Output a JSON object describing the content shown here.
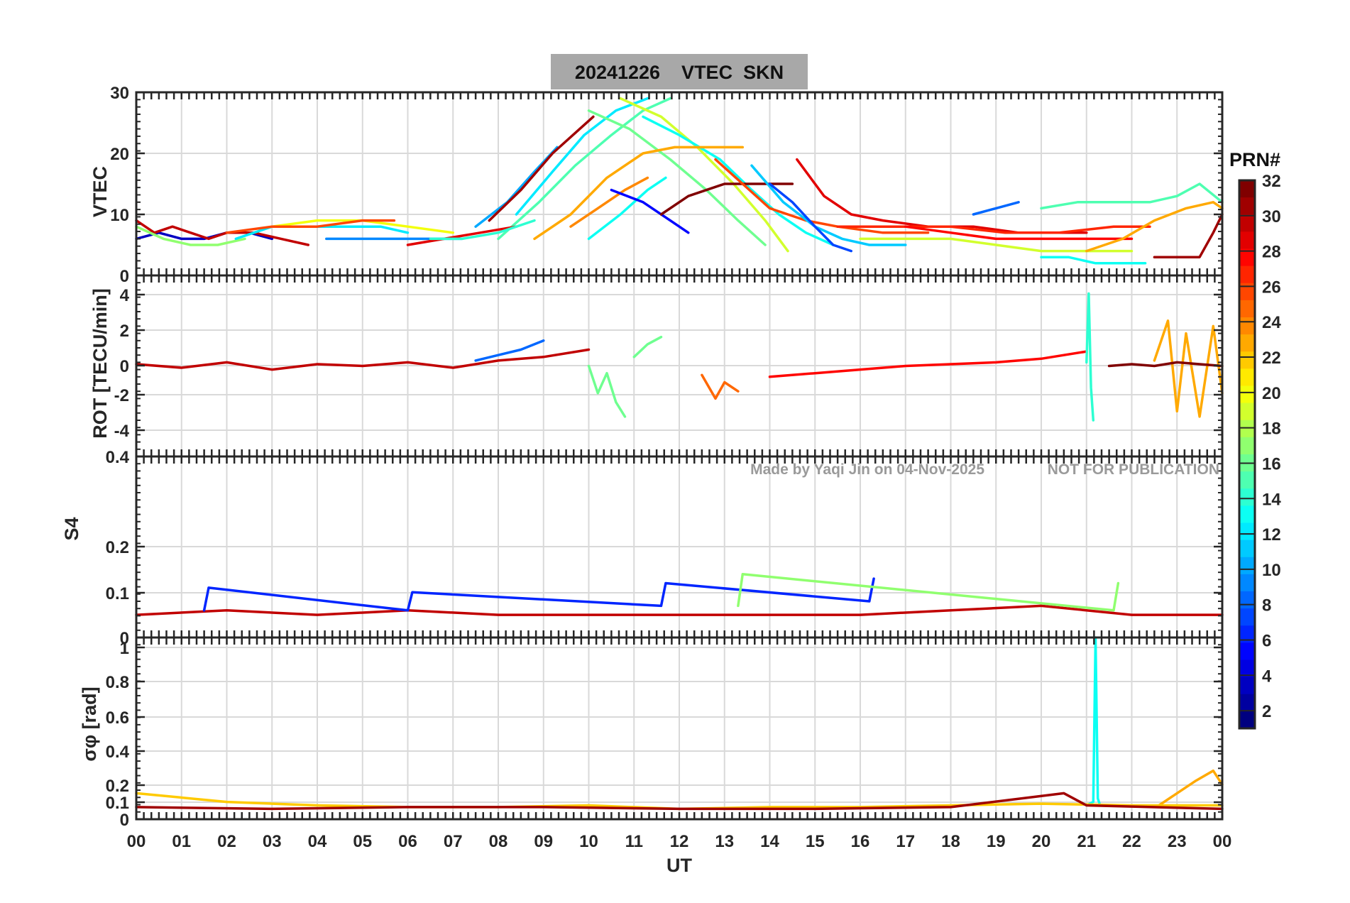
{
  "chart_data": {
    "type": "line",
    "title": "20241226    VTEC  SKN",
    "watermark": [
      "Made by Yaqi Jin on 04-Nov-2025",
      "NOT FOR PUBLICATION"
    ],
    "xlabel": "UT",
    "xlim": [
      0,
      24
    ],
    "xticks": [
      "00",
      "01",
      "02",
      "03",
      "04",
      "05",
      "06",
      "07",
      "08",
      "09",
      "10",
      "11",
      "12",
      "13",
      "14",
      "15",
      "16",
      "17",
      "18",
      "19",
      "20",
      "21",
      "22",
      "23",
      "00"
    ],
    "colorbar": {
      "title": "PRN#",
      "range": [
        1,
        32
      ],
      "ticks": [
        "2",
        "4",
        "6",
        "8",
        "10",
        "12",
        "14",
        "16",
        "18",
        "20",
        "22",
        "24",
        "26",
        "28",
        "30",
        "32"
      ]
    },
    "panels": [
      {
        "id": "vtec",
        "ylabel": "VTEC",
        "ylim": [
          0,
          30
        ],
        "yticks": [
          "0",
          "10",
          "20",
          "30"
        ],
        "series": [
          {
            "prn": 10,
            "x": [
              7.5,
              8.2,
              8.8,
              9.3
            ],
            "y": [
              8,
              12,
              17,
              21
            ]
          },
          {
            "prn": 31,
            "x": [
              7.8,
              8.5,
              9.2,
              9.8,
              10.1
            ],
            "y": [
              9,
              14,
              20,
              24,
              26
            ]
          },
          {
            "prn": 12,
            "x": [
              8.4,
              9.2,
              9.9,
              10.6,
              11.3
            ],
            "y": [
              10,
              17,
              23,
              27,
              29
            ]
          },
          {
            "prn": 15,
            "x": [
              8.0,
              8.9,
              9.7,
              10.5,
              11.2,
              11.8
            ],
            "y": [
              6,
              12,
              18,
              23,
              27,
              29
            ]
          },
          {
            "prn": 16,
            "x": [
              10.0,
              10.9,
              11.8,
              12.6,
              13.3,
              13.9
            ],
            "y": [
              27,
              24,
              19,
              14,
              9,
              5
            ]
          },
          {
            "prn": 19,
            "x": [
              10.7,
              11.6,
              12.4,
              13.2,
              13.9,
              14.4
            ],
            "y": [
              29,
              26,
              21,
              15,
              9,
              4
            ]
          },
          {
            "prn": 13,
            "x": [
              11.2,
              12.0,
              12.9,
              13.6,
              14.2,
              14.8,
              15.4
            ],
            "y": [
              26,
              23,
              19,
              14,
              10,
              7,
              5
            ]
          },
          {
            "prn": 23,
            "x": [
              8.8,
              9.6,
              10.4,
              11.2,
              11.9,
              12.5,
              13.4
            ],
            "y": [
              6,
              10,
              16,
              20,
              21,
              21,
              21
            ]
          },
          {
            "prn": 24,
            "x": [
              9.6,
              10.2,
              10.8,
              11.3
            ],
            "y": [
              8,
              11,
              14,
              16
            ]
          },
          {
            "prn": 13,
            "x": [
              10.0,
              10.7,
              11.3,
              11.7
            ],
            "y": [
              6,
              10,
              14,
              16
            ]
          },
          {
            "prn": 5,
            "x": [
              10.5,
              11.2,
              11.8,
              12.2
            ],
            "y": [
              14,
              12,
              9,
              7
            ]
          },
          {
            "prn": 32,
            "x": [
              11.6,
              12.2,
              13.0,
              13.6,
              14.2,
              14.5
            ],
            "y": [
              10,
              13,
              15,
              15,
              15,
              15
            ]
          },
          {
            "prn": 26,
            "x": [
              12.8,
              13.4,
              14.0,
              14.8,
              15.5,
              16.5,
              17.5
            ],
            "y": [
              19,
              15,
              11,
              9,
              8,
              7,
              7
            ]
          },
          {
            "prn": 29,
            "x": [
              14.6,
              15.2,
              15.8,
              16.5,
              17.5,
              18.5,
              19.5,
              20.5,
              21.0
            ],
            "y": [
              19,
              13,
              10,
              9,
              8,
              8,
              7,
              7,
              7
            ]
          },
          {
            "prn": 11,
            "x": [
              13.6,
              14.3,
              15.0,
              15.6,
              16.2,
              17.0
            ],
            "y": [
              18,
              12,
              8,
              6,
              5,
              5
            ]
          },
          {
            "prn": 7,
            "x": [
              14.0,
              14.5,
              15.0,
              15.4,
              15.8
            ],
            "y": [
              15,
              12,
              8,
              5,
              4
            ]
          },
          {
            "prn": 27,
            "x": [
              15.5,
              16.8,
              18.0,
              19.2,
              20.4,
              21.6,
              22.4
            ],
            "y": [
              8,
              8,
              8,
              7,
              7,
              8,
              8
            ]
          },
          {
            "prn": 28,
            "x": [
              17.0,
              18.0,
              19.0,
              20.0,
              21.0,
              22.0
            ],
            "y": [
              8,
              7,
              6,
              6,
              6,
              6
            ]
          },
          {
            "prn": 19,
            "x": [
              16.0,
              17.0,
              18.0,
              19.0,
              20.0,
              21.0,
              22.0
            ],
            "y": [
              6,
              6,
              6,
              5,
              4,
              4,
              4
            ]
          },
          {
            "prn": 13,
            "x": [
              20.0,
              20.6,
              21.2,
              21.8,
              22.3
            ],
            "y": [
              3,
              3,
              2,
              2,
              2
            ]
          },
          {
            "prn": 15,
            "x": [
              20.0,
              20.8,
              21.6,
              22.4,
              23.0,
              23.5,
              24.0
            ],
            "y": [
              11,
              12,
              12,
              12,
              13,
              15,
              12
            ]
          },
          {
            "prn": 23,
            "x": [
              21.0,
              21.8,
              22.5,
              23.2,
              23.8,
              24.0
            ],
            "y": [
              4,
              6,
              9,
              11,
              12,
              11
            ]
          },
          {
            "prn": 31,
            "x": [
              22.5,
              23.0,
              23.5,
              23.8,
              24.0
            ],
            "y": [
              3,
              3,
              3,
              7,
              10
            ]
          },
          {
            "prn": 8,
            "x": [
              18.5,
              19.0,
              19.5
            ],
            "y": [
              10,
              11,
              12
            ]
          },
          {
            "prn": 3,
            "x": [
              0.0,
              0.5,
              1.0,
              1.5,
              2.0,
              2.5,
              3.0
            ],
            "y": [
              6,
              7,
              6,
              6,
              7,
              7,
              6
            ]
          },
          {
            "prn": 30,
            "x": [
              0.0,
              0.4,
              0.8,
              1.2,
              1.6,
              2.0,
              2.6,
              3.2,
              3.8
            ],
            "y": [
              9,
              7,
              8,
              7,
              6,
              7,
              7,
              6,
              5
            ]
          },
          {
            "prn": 17,
            "x": [
              0.0,
              0.6,
              1.2,
              1.8,
              2.4
            ],
            "y": [
              8,
              6,
              5,
              5,
              6
            ]
          },
          {
            "prn": 12,
            "x": [
              2.2,
              3.0,
              3.8,
              4.6,
              5.4,
              6.0
            ],
            "y": [
              6,
              8,
              8,
              8,
              8,
              7
            ]
          },
          {
            "prn": 20,
            "x": [
              3.0,
              4.0,
              5.0,
              6.0,
              7.0
            ],
            "y": [
              8,
              9,
              9,
              8,
              7
            ]
          },
          {
            "prn": 26,
            "x": [
              2.0,
              3.0,
              4.0,
              5.0,
              5.7
            ],
            "y": [
              7,
              8,
              8,
              9,
              9
            ]
          },
          {
            "prn": 9,
            "x": [
              4.2,
              5.0,
              5.8,
              6.5,
              7.2
            ],
            "y": [
              6,
              6,
              6,
              6,
              6
            ]
          },
          {
            "prn": 29,
            "x": [
              6.0,
              6.8,
              7.6,
              8.4
            ],
            "y": [
              5,
              6,
              7,
              8
            ]
          },
          {
            "prn": 14,
            "x": [
              6.5,
              7.2,
              8.0,
              8.8
            ],
            "y": [
              6,
              6,
              7,
              9
            ]
          }
        ]
      },
      {
        "id": "rot",
        "ylabel": "ROT [TECU/min]",
        "ylim": [
          -5,
          5
        ],
        "yticks": [
          "-4",
          "-2",
          "0",
          "2",
          "4"
        ],
        "series": [
          {
            "prn": 30,
            "x": [
              0,
              1,
              2,
              3,
              4,
              5,
              6,
              7,
              8,
              9,
              10
            ],
            "y": [
              0.1,
              -0.1,
              0.2,
              -0.2,
              0.1,
              0.0,
              0.2,
              -0.1,
              0.3,
              0.5,
              0.9
            ]
          },
          {
            "prn": 8,
            "x": [
              7.5,
              8.0,
              8.5,
              9.0
            ],
            "y": [
              0.3,
              0.6,
              0.9,
              1.4
            ]
          },
          {
            "prn": 16,
            "x": [
              10.0,
              10.2,
              10.4,
              10.6,
              10.8
            ],
            "y": [
              0.0,
              -1.5,
              -0.4,
              -2.0,
              -2.8
            ]
          },
          {
            "prn": 16,
            "x": [
              11.0,
              11.3,
              11.6
            ],
            "y": [
              0.5,
              1.2,
              1.6
            ]
          },
          {
            "prn": 25,
            "x": [
              12.5,
              12.8,
              13.0,
              13.3
            ],
            "y": [
              -0.5,
              -1.8,
              -0.9,
              -1.4
            ]
          },
          {
            "prn": 28,
            "x": [
              14.0,
              15.0,
              16.0,
              17.0,
              18.0,
              19.0,
              20.0,
              21.0
            ],
            "y": [
              -0.6,
              -0.4,
              -0.2,
              0.0,
              0.1,
              0.2,
              0.4,
              0.8
            ]
          },
          {
            "prn": 14,
            "x": [
              21.0,
              21.05,
              21.1,
              21.15
            ],
            "y": [
              0.2,
              4.0,
              -1.2,
              -3.0
            ]
          },
          {
            "prn": 23,
            "x": [
              22.5,
              22.8,
              23.0,
              23.2,
              23.5,
              23.8,
              24.0
            ],
            "y": [
              0.3,
              2.5,
              -2.5,
              1.8,
              -2.8,
              2.2,
              -1.5
            ]
          },
          {
            "prn": 32,
            "x": [
              21.5,
              22.0,
              22.5,
              23.0,
              23.5,
              24.0
            ],
            "y": [
              0.0,
              0.1,
              0.0,
              0.2,
              0.1,
              0.0
            ]
          }
        ]
      },
      {
        "id": "s4",
        "ylabel": "S4",
        "ylim": [
          0,
          0.4
        ],
        "yticks": [
          "0",
          "0.1",
          "0.2",
          "0.4"
        ],
        "series": [
          {
            "prn": 30,
            "x": [
              0,
              2,
              4,
              6,
              8,
              10,
              12,
              14,
              16,
              18,
              20,
              22,
              24
            ],
            "y": [
              0.05,
              0.06,
              0.05,
              0.06,
              0.05,
              0.05,
              0.05,
              0.05,
              0.05,
              0.06,
              0.07,
              0.05,
              0.05
            ]
          },
          {
            "prn": 6,
            "x": [
              1.5,
              1.6,
              6.0,
              6.1,
              11.6,
              11.7,
              16.2,
              16.3
            ],
            "y": [
              0.06,
              0.11,
              0.06,
              0.1,
              0.07,
              0.12,
              0.08,
              0.13
            ]
          },
          {
            "prn": 17,
            "x": [
              13.3,
              13.4,
              21.6,
              21.7
            ],
            "y": [
              0.07,
              0.14,
              0.06,
              0.12
            ]
          }
        ]
      },
      {
        "id": "sigma_phi",
        "ylabel": "σφ [rad]",
        "ylim": [
          0,
          1.05
        ],
        "yticks": [
          "0",
          "0.1",
          "0.2",
          "0.4",
          "0.6",
          "0.8",
          "1"
        ],
        "series": [
          {
            "prn": 13,
            "x": [
              21.0,
              21.15,
              21.2,
              21.25,
              21.3
            ],
            "y": [
              0.08,
              0.1,
              1.05,
              0.12,
              0.08
            ]
          },
          {
            "prn": 23,
            "x": [
              22.6,
              23.0,
              23.4,
              23.8,
              24.0
            ],
            "y": [
              0.08,
              0.15,
              0.22,
              0.28,
              0.2
            ]
          },
          {
            "prn": 22,
            "x": [
              0,
              2,
              4,
              6,
              8,
              10,
              12,
              14,
              16,
              18,
              20,
              22,
              24
            ],
            "y": [
              0.15,
              0.1,
              0.08,
              0.07,
              0.07,
              0.08,
              0.06,
              0.07,
              0.07,
              0.08,
              0.09,
              0.08,
              0.08
            ]
          },
          {
            "prn": 31,
            "x": [
              0,
              3,
              6,
              9,
              12,
              15,
              18,
              20.5,
              21,
              24
            ],
            "y": [
              0.07,
              0.06,
              0.07,
              0.07,
              0.06,
              0.06,
              0.07,
              0.15,
              0.08,
              0.06
            ]
          }
        ]
      }
    ]
  }
}
